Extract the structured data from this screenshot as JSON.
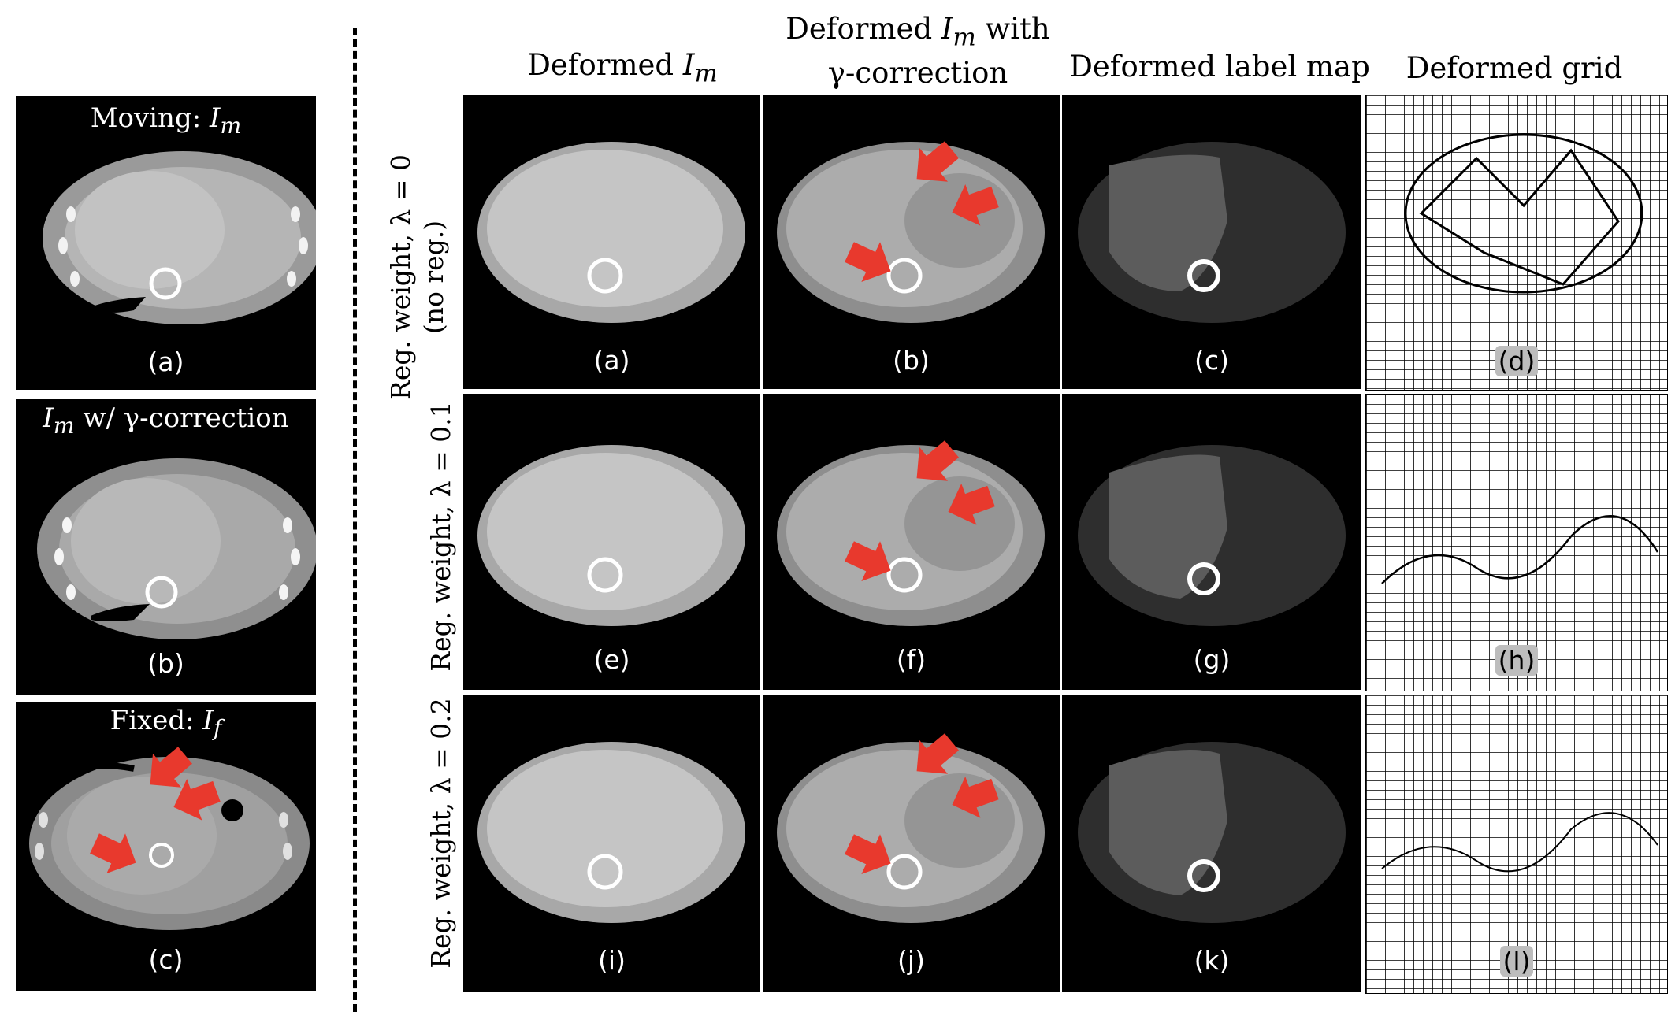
{
  "left_panels": [
    {
      "title_pre": "Moving: ",
      "title_var": "I",
      "title_sub": "m",
      "title_post": "",
      "label": "(a)"
    },
    {
      "title_pre": "",
      "title_var": "I",
      "title_sub": "m",
      "title_post": " w/ γ-correction",
      "label": "(b)"
    },
    {
      "title_pre": "Fixed: ",
      "title_var": "I",
      "title_sub": "f",
      "title_post": "",
      "label": "(c)"
    }
  ],
  "columns": {
    "col1": {
      "pre": "Deformed ",
      "var": "I",
      "sub": "m"
    },
    "col2": {
      "line1_pre": "Deformed ",
      "line1_var": "I",
      "line1_sub": "m",
      "line1_post": " with",
      "line2": "γ-correction"
    },
    "col3": "Deformed label map",
    "col4": "Deformed grid"
  },
  "rows": [
    {
      "title": "Reg. weight, λ = 0",
      "subtitle": "(no reg.)",
      "labels": [
        "(a)",
        "(b)",
        "(c)",
        "(d)"
      ]
    },
    {
      "title": "Reg. weight, λ = 0.1",
      "subtitle": "",
      "labels": [
        "(e)",
        "(f)",
        "(g)",
        "(h)"
      ]
    },
    {
      "title": "Reg. weight, λ = 0.2",
      "subtitle": "",
      "labels": [
        "(i)",
        "(j)",
        "(k)",
        "(l)"
      ]
    }
  ],
  "colors": {
    "arrow": "#e8392d",
    "panel_bg": "#000000"
  }
}
